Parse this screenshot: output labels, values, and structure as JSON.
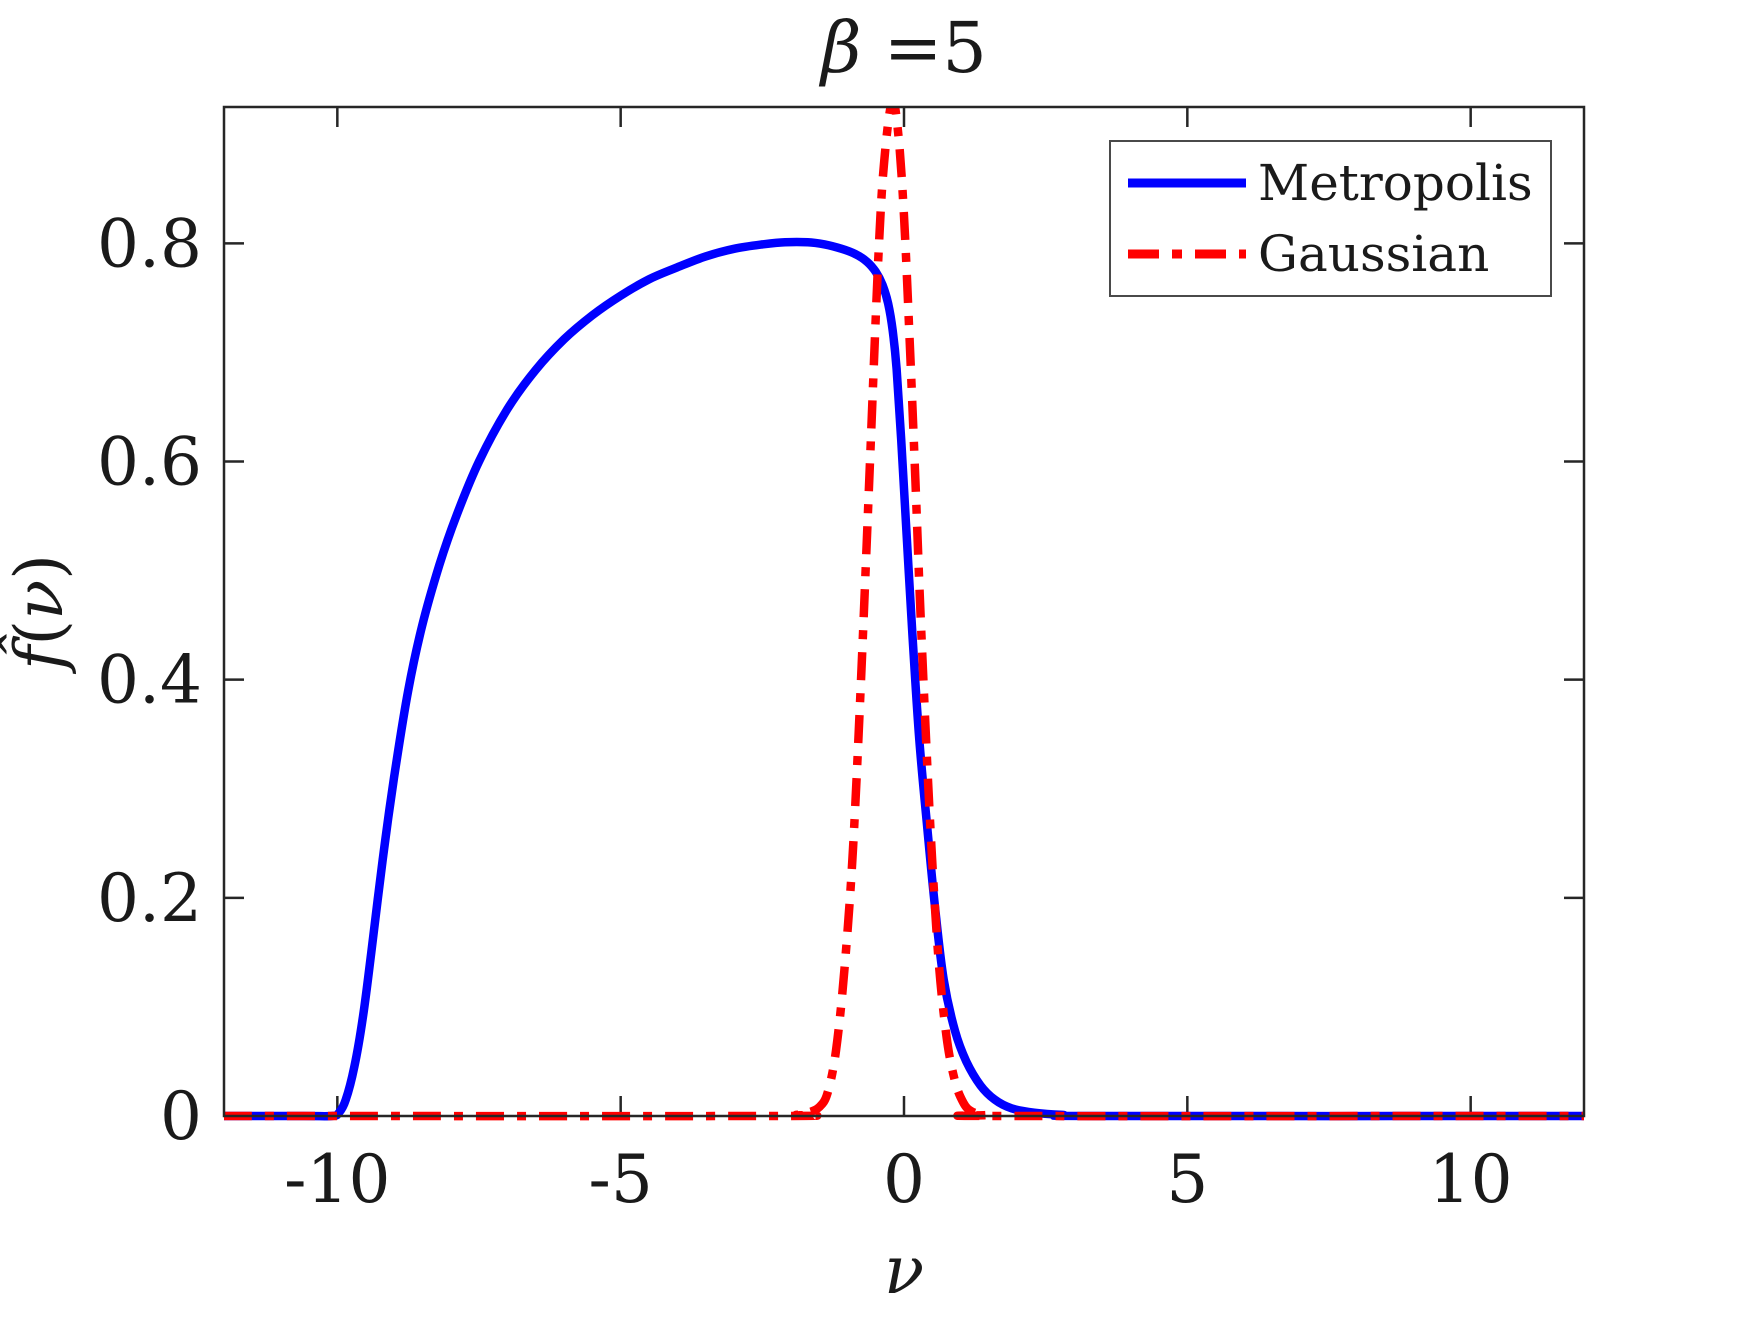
{
  "figure": {
    "background": "#ffffff"
  },
  "axes": {
    "frame_color": "#262626",
    "tick_color": "#262626",
    "label_color": "#1a1a1a"
  },
  "chart_data": {
    "type": "line",
    "title": "β =5",
    "title_parts": {
      "symbol": "β",
      "rest": " =5"
    },
    "xlabel": "ν",
    "ylabel": "f̂(ν)",
    "ylabel_parts": {
      "f": "f̂",
      "open": "(",
      "nu": "ν",
      "close": ")"
    },
    "xlim": [
      -12,
      12
    ],
    "ylim": [
      0,
      0.925
    ],
    "xticks": [
      -10,
      -5,
      0,
      5,
      10
    ],
    "yticks": [
      0,
      0.2,
      0.4,
      0.6,
      0.8
    ],
    "grid": false,
    "legend": {
      "position": "northeast"
    },
    "series": [
      {
        "name": "Metropolis",
        "color": "#0000FF",
        "style": "solid",
        "points": [
          [
            -12,
            0
          ],
          [
            -10.6,
            0
          ],
          [
            -10.1,
            0
          ],
          [
            -9.97,
            0.003
          ],
          [
            -9.85,
            0.015
          ],
          [
            -9.7,
            0.045
          ],
          [
            -9.55,
            0.09
          ],
          [
            -9.4,
            0.15
          ],
          [
            -9.2,
            0.235
          ],
          [
            -9.0,
            0.31
          ],
          [
            -8.75,
            0.39
          ],
          [
            -8.5,
            0.45
          ],
          [
            -8.2,
            0.505
          ],
          [
            -7.9,
            0.55
          ],
          [
            -7.5,
            0.6
          ],
          [
            -7.0,
            0.648
          ],
          [
            -6.5,
            0.684
          ],
          [
            -6.0,
            0.712
          ],
          [
            -5.5,
            0.734
          ],
          [
            -5.0,
            0.752
          ],
          [
            -4.5,
            0.767
          ],
          [
            -4.0,
            0.778
          ],
          [
            -3.5,
            0.788
          ],
          [
            -3.0,
            0.795
          ],
          [
            -2.5,
            0.799
          ],
          [
            -2.1,
            0.801
          ],
          [
            -1.7,
            0.801
          ],
          [
            -1.4,
            0.799
          ],
          [
            -1.1,
            0.795
          ],
          [
            -0.85,
            0.79
          ],
          [
            -0.65,
            0.783
          ],
          [
            -0.5,
            0.774
          ],
          [
            -0.38,
            0.762
          ],
          [
            -0.28,
            0.745
          ],
          [
            -0.2,
            0.72
          ],
          [
            -0.13,
            0.685
          ],
          [
            -0.05,
            0.62
          ],
          [
            0.05,
            0.53
          ],
          [
            0.15,
            0.44
          ],
          [
            0.27,
            0.345
          ],
          [
            0.4,
            0.27
          ],
          [
            0.55,
            0.19
          ],
          [
            0.7,
            0.125
          ],
          [
            0.9,
            0.078
          ],
          [
            1.1,
            0.05
          ],
          [
            1.35,
            0.028
          ],
          [
            1.6,
            0.015
          ],
          [
            1.9,
            0.007
          ],
          [
            2.3,
            0.003
          ],
          [
            2.8,
            0.001
          ],
          [
            3.5,
            0
          ],
          [
            12,
            0
          ]
        ]
      },
      {
        "name": "Gaussian",
        "color": "#FF0000",
        "style": "dashdot",
        "points": [
          [
            -12,
            0
          ],
          [
            -2.4,
            0
          ],
          [
            -1.9,
            0.001
          ],
          [
            -1.7,
            0.003
          ],
          [
            -1.5,
            0.008
          ],
          [
            -1.35,
            0.021
          ],
          [
            -1.2,
            0.06
          ],
          [
            -1.05,
            0.135
          ],
          [
            -0.9,
            0.245
          ],
          [
            -0.75,
            0.41
          ],
          [
            -0.6,
            0.6
          ],
          [
            -0.45,
            0.79
          ],
          [
            -0.35,
            0.875
          ],
          [
            -0.21,
            0.93
          ],
          [
            -0.1,
            0.9
          ],
          [
            0,
            0.825
          ],
          [
            0.1,
            0.71
          ],
          [
            0.2,
            0.585
          ],
          [
            0.3,
            0.45
          ],
          [
            0.45,
            0.28
          ],
          [
            0.6,
            0.15
          ],
          [
            0.75,
            0.073
          ],
          [
            0.9,
            0.032
          ],
          [
            1.05,
            0.012
          ],
          [
            1.2,
            0.004
          ],
          [
            1.45,
            0.001
          ],
          [
            1.8,
            0
          ],
          [
            12,
            0
          ]
        ]
      }
    ]
  }
}
